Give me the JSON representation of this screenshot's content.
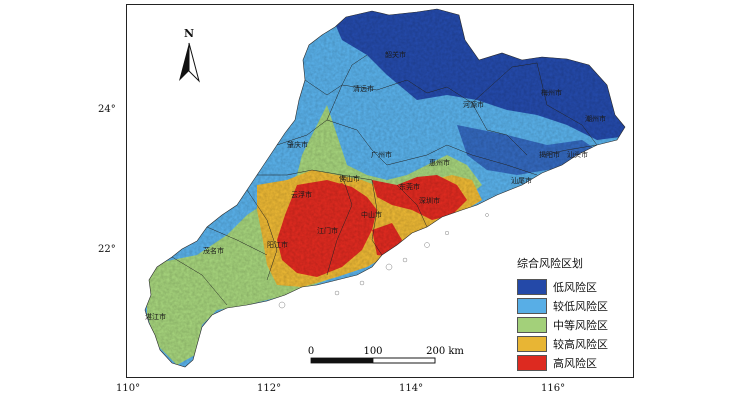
{
  "map": {
    "north_label": "N",
    "x_ticks": [
      "110°",
      "112°",
      "114°",
      "116°"
    ],
    "y_ticks": [
      "24°",
      "22°"
    ],
    "scale_bar": {
      "labels": [
        "0",
        "100",
        "200 km"
      ]
    },
    "legend": {
      "title": "综合风险区划",
      "items": [
        {
          "label": "低风险区",
          "color": "#2449a8"
        },
        {
          "label": "较低风险区",
          "color": "#58aee6"
        },
        {
          "label": "中等风险区",
          "color": "#a3d07a"
        },
        {
          "label": "较高风险区",
          "color": "#e8b534"
        },
        {
          "label": "高风险区",
          "color": "#dd2a20"
        }
      ]
    },
    "cities": [
      "韶关市",
      "清远市",
      "河源市",
      "梅州市",
      "潮州市",
      "肇庆市",
      "广州市",
      "惠州市",
      "揭阳市",
      "汕头市",
      "汕尾市",
      "佛山市",
      "东莞市",
      "云浮市",
      "深圳市",
      "中山市",
      "江门市",
      "阳江市",
      "茂名市",
      "湛江市"
    ]
  }
}
